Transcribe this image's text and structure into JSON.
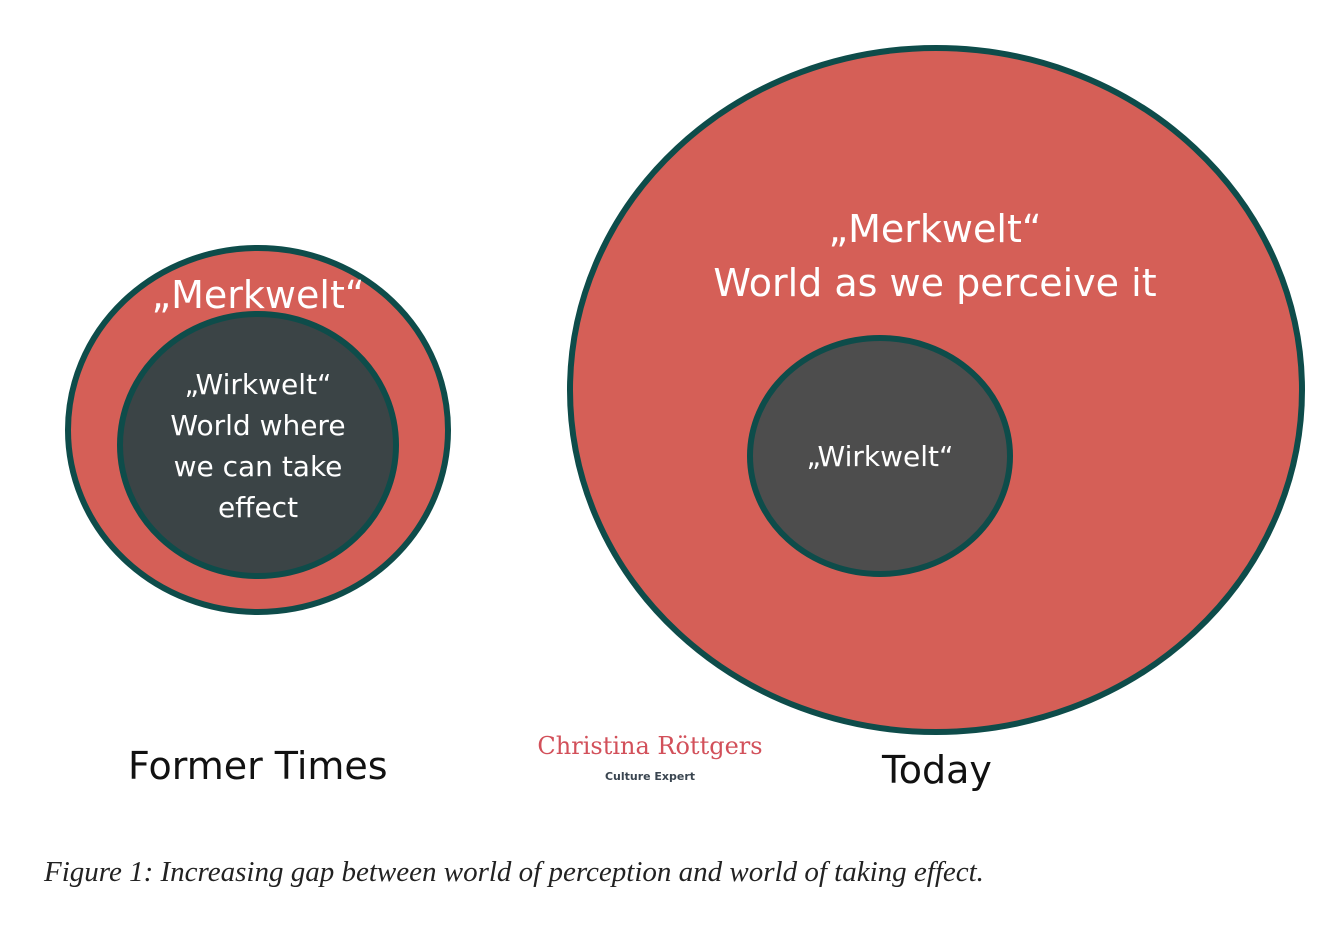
{
  "colors": {
    "outer": "#d55f57",
    "stroke": "#0e4c4a",
    "inner_left": "#3b4446",
    "inner_right": "#4d4d4d"
  },
  "left": {
    "outer_label": "„Merkwelt“",
    "inner_lines": [
      "„Wirkwelt“",
      "World where",
      "we can take",
      "effect"
    ],
    "caption": "Former Times"
  },
  "right": {
    "outer_lines": [
      "„Merkwelt“",
      "World as we perceive it"
    ],
    "inner_label": "„Wirkwelt“",
    "caption": "Today"
  },
  "logo": {
    "name": "Christina Röttgers",
    "subtitle": "Culture Expert"
  },
  "figure_caption": "Figure 1: Increasing gap between world of perception and world of taking effect."
}
